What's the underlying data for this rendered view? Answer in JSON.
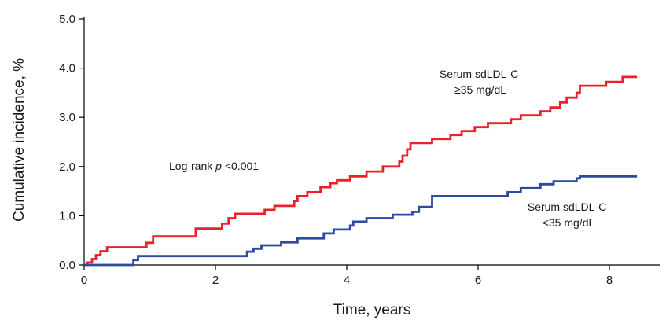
{
  "chart_data": {
    "type": "line",
    "step": true,
    "xlabel": "Time, years",
    "ylabel": "Cumulative incidence, %",
    "xlim": [
      0,
      8.8
    ],
    "ylim": [
      0,
      5.0
    ],
    "x_ticks": [
      "0",
      "2",
      "4",
      "6",
      "8"
    ],
    "x_tick_values": [
      0,
      2,
      4,
      6,
      8
    ],
    "y_ticks": [
      "0.0",
      "1.0",
      "2.0",
      "3.0",
      "4.0",
      "5.0"
    ],
    "y_tick_values": [
      0,
      1,
      2,
      3,
      4,
      5
    ],
    "grid": false,
    "series": [
      {
        "label_lines": [
          "Serum sdLDL-C",
          "≥35 mg/dL"
        ],
        "color": "#e8222a",
        "points": [
          [
            0,
            0
          ],
          [
            0.05,
            0.05
          ],
          [
            0.12,
            0.12
          ],
          [
            0.18,
            0.2
          ],
          [
            0.25,
            0.28
          ],
          [
            0.35,
            0.36
          ],
          [
            0.95,
            0.45
          ],
          [
            1.05,
            0.58
          ],
          [
            1.7,
            0.74
          ],
          [
            2.1,
            0.84
          ],
          [
            2.2,
            0.95
          ],
          [
            2.3,
            1.04
          ],
          [
            2.75,
            1.12
          ],
          [
            2.9,
            1.2
          ],
          [
            3.2,
            1.3
          ],
          [
            3.25,
            1.4
          ],
          [
            3.4,
            1.48
          ],
          [
            3.6,
            1.58
          ],
          [
            3.75,
            1.66
          ],
          [
            3.85,
            1.72
          ],
          [
            4.05,
            1.8
          ],
          [
            4.3,
            1.9
          ],
          [
            4.55,
            2.0
          ],
          [
            4.8,
            2.1
          ],
          [
            4.85,
            2.22
          ],
          [
            4.92,
            2.35
          ],
          [
            4.97,
            2.48
          ],
          [
            5.3,
            2.56
          ],
          [
            5.58,
            2.64
          ],
          [
            5.75,
            2.72
          ],
          [
            5.95,
            2.8
          ],
          [
            6.15,
            2.88
          ],
          [
            6.5,
            2.96
          ],
          [
            6.65,
            3.04
          ],
          [
            6.95,
            3.12
          ],
          [
            7.1,
            3.2
          ],
          [
            7.25,
            3.3
          ],
          [
            7.35,
            3.4
          ],
          [
            7.5,
            3.5
          ],
          [
            7.55,
            3.64
          ],
          [
            7.95,
            3.72
          ],
          [
            8.2,
            3.82
          ],
          [
            8.42,
            3.82
          ]
        ]
      },
      {
        "label_lines": [
          "Serum sdLDL-C",
          "<35 mg/dL"
        ],
        "color": "#2b4aa0",
        "points": [
          [
            0,
            0
          ],
          [
            0.75,
            0.1
          ],
          [
            0.82,
            0.18
          ],
          [
            2.48,
            0.27
          ],
          [
            2.58,
            0.33
          ],
          [
            2.7,
            0.4
          ],
          [
            3.0,
            0.46
          ],
          [
            3.25,
            0.54
          ],
          [
            3.65,
            0.64
          ],
          [
            3.8,
            0.72
          ],
          [
            4.05,
            0.8
          ],
          [
            4.1,
            0.88
          ],
          [
            4.3,
            0.95
          ],
          [
            4.7,
            1.02
          ],
          [
            5.0,
            1.08
          ],
          [
            5.1,
            1.18
          ],
          [
            5.3,
            1.4
          ],
          [
            6.45,
            1.48
          ],
          [
            6.65,
            1.56
          ],
          [
            6.95,
            1.64
          ],
          [
            7.15,
            1.7
          ],
          [
            7.5,
            1.76
          ],
          [
            7.55,
            1.8
          ],
          [
            8.42,
            1.8
          ]
        ]
      }
    ],
    "annotation": {
      "prefix": "Log-rank ",
      "italic": "p",
      "suffix": " <0.001"
    }
  }
}
